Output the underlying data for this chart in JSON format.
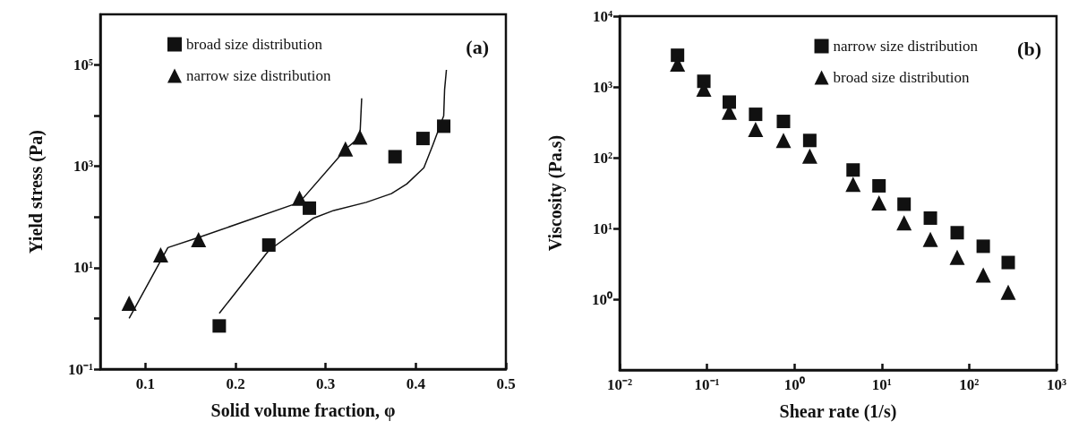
{
  "chart_data": [
    {
      "type": "scatter",
      "title": "(a)",
      "xlabel": "Solid volume fraction, φ",
      "ylabel": "Yield stress (Pa)",
      "log": "y",
      "grid": false,
      "legend": "top left",
      "xlim": [
        0.05,
        0.5
      ],
      "xticks": [
        0.1,
        0.2,
        0.3,
        0.4,
        0.5
      ],
      "ylim": [
        0.1,
        1000000
      ],
      "yticks": [
        {
          "value": 0.1,
          "label": "10⁻¹"
        },
        {
          "value": 1,
          "label": null
        },
        {
          "value": 10,
          "label": "10¹"
        },
        {
          "value": 100,
          "label": null
        },
        {
          "value": 1000,
          "label": "10³"
        },
        {
          "value": 10000,
          "label": null
        },
        {
          "value": 100000,
          "label": "10⁵"
        }
      ],
      "series": [
        {
          "name": "broad size distribution",
          "color": "#111111",
          "marker": "square",
          "x": [
            0.182,
            0.237,
            0.282,
            0.377,
            0.408,
            0.431
          ],
          "values": [
            0.71,
            28,
            150,
            1550,
            3550,
            6200
          ]
        },
        {
          "name": "narrow size distribution",
          "color": "#111111",
          "marker": "triangle",
          "x": [
            0.082,
            0.117,
            0.159,
            0.271,
            0.322,
            0.338
          ],
          "values": [
            2,
            18,
            36,
            235,
            2200,
            3800
          ]
        },
        {
          "type": "line",
          "color": "#111111",
          "marker": "none",
          "x": [
            0.082,
            0.125,
            0.16,
            0.271,
            0.323,
            0.338,
            0.34
          ],
          "values": [
            1,
            25,
            40,
            195,
            2250,
            3800,
            22000
          ]
        },
        {
          "type": "line",
          "color": "#111111",
          "marker": "none",
          "x": [
            0.182,
            0.237,
            0.286,
            0.309,
            0.345,
            0.373,
            0.39,
            0.409,
            0.419,
            0.431,
            0.432,
            0.434
          ],
          "values": [
            1.26,
            22,
            94,
            135,
            195,
            290,
            450,
            940,
            2650,
            10000,
            33000,
            80000
          ]
        }
      ]
    },
    {
      "type": "scatter",
      "title": "(b)",
      "xlabel": "Shear rate (1/s)",
      "ylabel": "Viscosity (Pa.s)",
      "log": "xy",
      "grid": false,
      "legend": "top right",
      "xlim": [
        0.01,
        1000
      ],
      "xticks": [
        {
          "value": 0.01,
          "label": "10⁻²"
        },
        {
          "value": 0.1,
          "label": "10⁻¹"
        },
        {
          "value": 1,
          "label": "10⁰"
        },
        {
          "value": 10,
          "label": "10¹"
        },
        {
          "value": 100,
          "label": "10²"
        },
        {
          "value": 1000,
          "label": "10³"
        }
      ],
      "ylim": [
        0.1,
        10000
      ],
      "yticks": [
        {
          "value": 1,
          "label": "10⁰"
        },
        {
          "value": 10,
          "label": "10¹"
        },
        {
          "value": 100,
          "label": "10²"
        },
        {
          "value": 1000,
          "label": "10³"
        },
        {
          "value": 10000,
          "label": "10⁴"
        }
      ],
      "series": [
        {
          "name": "narrow size distribution",
          "color": "#111111",
          "marker": "square",
          "x": [
            0.046,
            0.092,
            0.18,
            0.36,
            0.75,
            1.5,
            4.7,
            9.3,
            18,
            36,
            73,
            145,
            280
          ],
          "values": [
            2800,
            1200,
            610,
            410,
            325,
            175,
            67,
            40,
            22,
            14,
            8.7,
            5.6,
            3.3
          ]
        },
        {
          "name": "broad size distribution",
          "color": "#111111",
          "marker": "triangle",
          "x": [
            0.046,
            0.092,
            0.18,
            0.36,
            0.75,
            1.5,
            4.7,
            9.3,
            18,
            36,
            73,
            145,
            280
          ],
          "values": [
            2100,
            930,
            440,
            250,
            175,
            105,
            42,
            23,
            12,
            7,
            3.9,
            2.2,
            1.25
          ]
        }
      ]
    }
  ]
}
